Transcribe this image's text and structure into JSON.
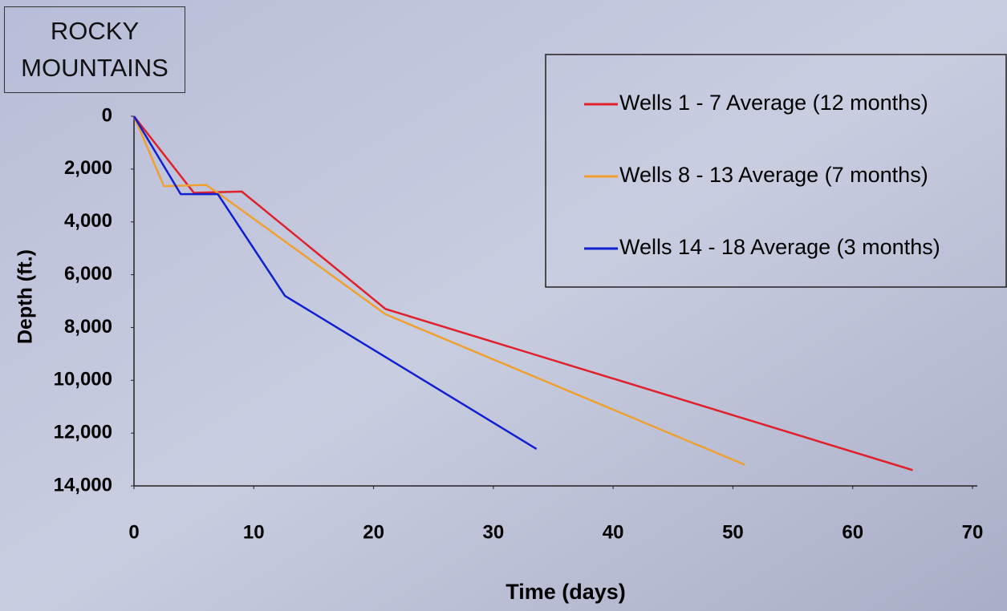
{
  "chart_data": {
    "type": "line",
    "title": "ROCKY MOUNTAINS",
    "x_label": "Time (days)",
    "y_label": "Depth (ft.)",
    "xlim": [
      0,
      70
    ],
    "xticks": [
      0,
      10,
      20,
      30,
      40,
      50,
      60,
      70
    ],
    "ylim": [
      0,
      14000
    ],
    "y_inverted": true,
    "yticks": [
      0,
      {
        "value": 2000,
        "label": "2,000"
      },
      {
        "value": 4000,
        "label": "4,000"
      },
      {
        "value": 6000,
        "label": "6,000"
      },
      {
        "value": 8000,
        "label": "8,000"
      },
      {
        "value": 10000,
        "label": "10,000"
      },
      {
        "value": 12000,
        "label": "12,000"
      },
      {
        "value": 14000,
        "label": "14,000"
      }
    ],
    "grid": false,
    "legend": "upper right",
    "series": [
      {
        "name": "Wells 1 - 7 Average (12 months)",
        "color": "#e0202a",
        "x": [
          0,
          5,
          9,
          21,
          65
        ],
        "values": [
          0,
          2900,
          2850,
          7300,
          13400
        ]
      },
      {
        "name": "Wells 8 - 13 Average (7 months)",
        "color": "#f0a030",
        "x": [
          0,
          2.5,
          6,
          7,
          21,
          51
        ],
        "values": [
          0,
          2650,
          2600,
          2900,
          7500,
          13200
        ]
      },
      {
        "name": "Wells 14 - 18 Average (3 months)",
        "color": "#1020d0",
        "x": [
          0,
          3.9,
          7,
          12.6,
          33.6
        ],
        "values": [
          0,
          2950,
          2950,
          6800,
          12600
        ]
      }
    ]
  }
}
